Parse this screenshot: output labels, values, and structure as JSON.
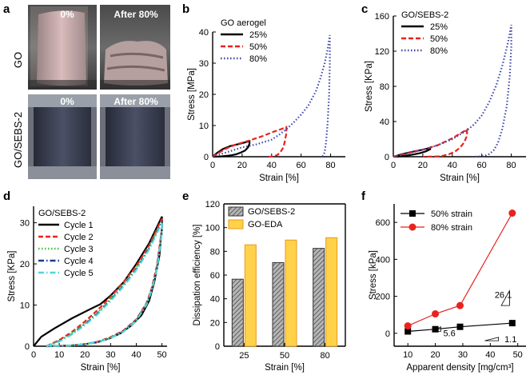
{
  "panel_labels": {
    "a": "a",
    "b": "b",
    "c": "c",
    "d": "d",
    "e": "e",
    "f": "f"
  },
  "photos": {
    "row_labels": [
      "GO",
      "GO/SEBS-2"
    ],
    "captions": [
      "0%",
      "After 80%",
      "0%",
      "After 80%"
    ]
  },
  "colors": {
    "black": "#000000",
    "red": "#e8231f",
    "blue": "#3c48a8",
    "green": "#3fc43f",
    "cyan": "#4fd8d8",
    "darkblue": "#1f3a93",
    "gray": "#8c8c8c",
    "yellow": "#ffd24a",
    "orange": "#e89a1a"
  },
  "chart_data": [
    {
      "id": "b",
      "type": "line",
      "title": "GO aerogel",
      "xlabel": "Strain [%]",
      "ylabel": "Stress [MPa]",
      "xlim": [
        0,
        90
      ],
      "ylim": [
        0,
        40
      ],
      "xticks": [
        "0",
        "20",
        "40",
        "60",
        "80"
      ],
      "yticks": [
        "0",
        "10",
        "20",
        "30",
        "40"
      ],
      "series": [
        {
          "name": "25%",
          "style": "solid",
          "color": "#000000",
          "x": [
            0,
            3,
            7,
            12,
            17,
            22,
            25,
            25,
            24,
            22,
            19,
            16,
            13,
            10,
            7,
            4,
            2,
            0
          ],
          "y": [
            0,
            1.2,
            2.5,
            3.4,
            4.0,
            4.6,
            5.0,
            4.2,
            3.0,
            2.0,
            1.3,
            0.8,
            0.5,
            0.3,
            0.15,
            0.05,
            0.02,
            0
          ]
        },
        {
          "name": "50%",
          "style": "dashed",
          "color": "#e8231f",
          "x": [
            0,
            5,
            10,
            15,
            20,
            25,
            30,
            35,
            40,
            45,
            50,
            50,
            49,
            48,
            46,
            44,
            42,
            40,
            38
          ],
          "y": [
            0,
            1.5,
            2.8,
            3.8,
            4.5,
            5.2,
            6.0,
            6.8,
            7.8,
            8.6,
            9.5,
            7.5,
            5.0,
            3.0,
            1.5,
            0.6,
            0.2,
            0.05,
            0
          ]
        },
        {
          "name": "80%",
          "style": "dotted",
          "color": "#3c48a8",
          "x": [
            0,
            10,
            20,
            30,
            40,
            45,
            50,
            55,
            60,
            65,
            70,
            73,
            76,
            78,
            79.5,
            79.5,
            79,
            78,
            77,
            76,
            75,
            74
          ],
          "y": [
            0,
            1.5,
            3.0,
            4.0,
            5.5,
            7.0,
            8.8,
            11.0,
            13.5,
            16.5,
            21.0,
            25.0,
            30.0,
            34.5,
            39.0,
            30.0,
            20.0,
            11.0,
            5.0,
            1.5,
            0.3,
            0
          ]
        }
      ]
    },
    {
      "id": "c",
      "type": "line",
      "title": "GO/SEBS-2",
      "xlabel": "Strain [%]",
      "ylabel": "Stress [KPa]",
      "xlim": [
        0,
        90
      ],
      "ylim": [
        0,
        160
      ],
      "xticks": [
        "0",
        "20",
        "40",
        "60",
        "80"
      ],
      "yticks": [
        "0",
        "40",
        "80",
        "120",
        "160"
      ],
      "series": [
        {
          "name": "25%",
          "style": "solid",
          "color": "#000000",
          "x": [
            0,
            5,
            10,
            15,
            20,
            25,
            25,
            22,
            18,
            14,
            10,
            6,
            3,
            0
          ],
          "y": [
            0,
            2.5,
            4.5,
            6.3,
            8.0,
            10.0,
            8.5,
            6.0,
            4.0,
            2.6,
            1.5,
            0.7,
            0.2,
            0
          ]
        },
        {
          "name": "50%",
          "style": "dashed",
          "color": "#e8231f",
          "x": [
            0,
            10,
            20,
            30,
            40,
            45,
            50,
            50,
            48,
            45,
            42,
            38,
            34,
            30,
            25,
            20
          ],
          "y": [
            0,
            4.0,
            8.0,
            13.0,
            21.0,
            26.0,
            31.0,
            24.0,
            16.0,
            10.0,
            6.0,
            3.0,
            1.2,
            0.4,
            0.1,
            0
          ]
        },
        {
          "name": "80%",
          "style": "dotted",
          "color": "#3c48a8",
          "x": [
            0,
            10,
            20,
            30,
            40,
            50,
            55,
            60,
            65,
            70,
            74,
            77,
            79,
            80,
            80,
            79,
            77,
            74,
            71,
            68,
            65,
            62,
            58,
            55
          ],
          "y": [
            0,
            4.0,
            8.0,
            13.0,
            20.0,
            30.0,
            37.0,
            47.0,
            62.0,
            82.0,
            104.0,
            124.0,
            140.0,
            150.0,
            125.0,
            92.0,
            58.0,
            32.0,
            16.0,
            7.0,
            3.0,
            1.0,
            0.2,
            0
          ]
        }
      ]
    },
    {
      "id": "d",
      "type": "line",
      "title": "GO/SEBS-2",
      "xlabel": "Strain [%]",
      "ylabel": "Stress [KPa]",
      "xlim": [
        0,
        52
      ],
      "ylim": [
        0,
        34
      ],
      "xticks": [
        "0",
        "10",
        "20",
        "30",
        "40",
        "50"
      ],
      "yticks": [
        "0",
        "10",
        "20",
        "30"
      ],
      "series": [
        {
          "name": "Cycle 1",
          "style": "solid",
          "color": "#000000",
          "x": [
            0,
            3,
            8,
            15,
            22,
            26,
            30,
            35,
            40,
            45,
            50,
            50,
            49,
            47,
            45,
            42,
            38,
            34,
            30,
            25,
            20,
            15,
            10,
            5
          ],
          "y": [
            0,
            2.3,
            4.3,
            6.8,
            9.0,
            10.2,
            12.3,
            15.5,
            20.0,
            25.0,
            31.5,
            29.0,
            22.0,
            15.5,
            11.0,
            7.5,
            5.0,
            3.2,
            2.0,
            1.0,
            0.5,
            0.2,
            0.05,
            0
          ]
        },
        {
          "name": "Cycle 2",
          "style": "dashed",
          "color": "#e8231f",
          "x": [
            5,
            10,
            15,
            20,
            25,
            30,
            35,
            40,
            45,
            50,
            50,
            48,
            46,
            44,
            40,
            35,
            30,
            25,
            20,
            15,
            10,
            5
          ],
          "y": [
            0,
            1.5,
            3.5,
            6.0,
            8.8,
            12.0,
            15.5,
            19.5,
            24.5,
            31.0,
            28.5,
            19.5,
            14.0,
            10.5,
            6.5,
            3.8,
            2.2,
            1.1,
            0.5,
            0.2,
            0.05,
            0
          ]
        },
        {
          "name": "Cycle 3",
          "style": "dotted",
          "color": "#3fc43f",
          "x": [
            5,
            10,
            15,
            20,
            25,
            30,
            35,
            40,
            45,
            50,
            50,
            48,
            46,
            44,
            40,
            35,
            30,
            25,
            20,
            15,
            10,
            5
          ],
          "y": [
            0,
            1.3,
            3.2,
            5.5,
            8.2,
            11.5,
            15.0,
            19.0,
            24.0,
            30.5,
            28.0,
            19.0,
            13.8,
            10.3,
            6.4,
            3.7,
            2.1,
            1.1,
            0.5,
            0.2,
            0.05,
            0
          ]
        },
        {
          "name": "Cycle 4",
          "style": "dashdot",
          "color": "#1f3a93",
          "x": [
            5,
            10,
            15,
            20,
            25,
            30,
            35,
            40,
            45,
            50,
            50,
            48,
            46,
            44,
            40,
            35,
            30,
            25,
            20,
            15,
            10,
            5
          ],
          "y": [
            0,
            1.2,
            3.0,
            5.3,
            8.0,
            11.2,
            14.7,
            18.7,
            23.7,
            30.2,
            27.8,
            18.8,
            13.6,
            10.2,
            6.3,
            3.6,
            2.0,
            1.0,
            0.5,
            0.2,
            0.05,
            0
          ]
        },
        {
          "name": "Cycle 5",
          "style": "dashdot",
          "color": "#4fd8d8",
          "x": [
            5,
            10,
            15,
            20,
            25,
            30,
            35,
            40,
            45,
            50,
            50,
            48,
            46,
            44,
            40,
            35,
            30,
            25,
            20,
            15,
            10,
            5
          ],
          "y": [
            0,
            1.1,
            2.9,
            5.1,
            7.8,
            11.0,
            14.5,
            18.5,
            23.5,
            30.0,
            27.5,
            18.6,
            13.5,
            10.1,
            6.2,
            3.5,
            2.0,
            1.0,
            0.5,
            0.2,
            0.05,
            0
          ]
        }
      ]
    },
    {
      "id": "e",
      "type": "bar",
      "xlabel": "Strain [%]",
      "ylabel": "Dissipation efficiency [%]",
      "categories": [
        "25",
        "50",
        "80"
      ],
      "ylim": [
        0,
        120
      ],
      "yticks": [
        "0",
        "20",
        "40",
        "60",
        "80",
        "100",
        "120"
      ],
      "series": [
        {
          "name": "GO/SEBS-2",
          "color": "#8c8c8c",
          "values": [
            56.5,
            70.5,
            82.5
          ]
        },
        {
          "name": "GO-EDA",
          "color": "#ffd24a",
          "values": [
            85.5,
            89.5,
            91.5
          ]
        }
      ]
    },
    {
      "id": "f",
      "type": "line",
      "xlabel": "Apparent density [mg/cm³]",
      "ylabel": "Stress [kPa]",
      "xlim": [
        5,
        53
      ],
      "ylim": [
        -70,
        700
      ],
      "xticks": [
        "10",
        "20",
        "30",
        "40",
        "50"
      ],
      "yticks": [
        "0",
        "200",
        "400",
        "600"
      ],
      "series": [
        {
          "name": "50% strain",
          "marker": "square",
          "color": "#000000",
          "x": [
            10,
            20,
            29,
            48
          ],
          "y": [
            10,
            22,
            35,
            55
          ]
        },
        {
          "name": "80% strain",
          "marker": "circle",
          "color": "#e8231f",
          "x": [
            10,
            20,
            29,
            48
          ],
          "y": [
            40,
            105,
            150,
            650
          ]
        }
      ],
      "annotations": [
        "26.1",
        "5.6",
        "1.1"
      ]
    }
  ]
}
